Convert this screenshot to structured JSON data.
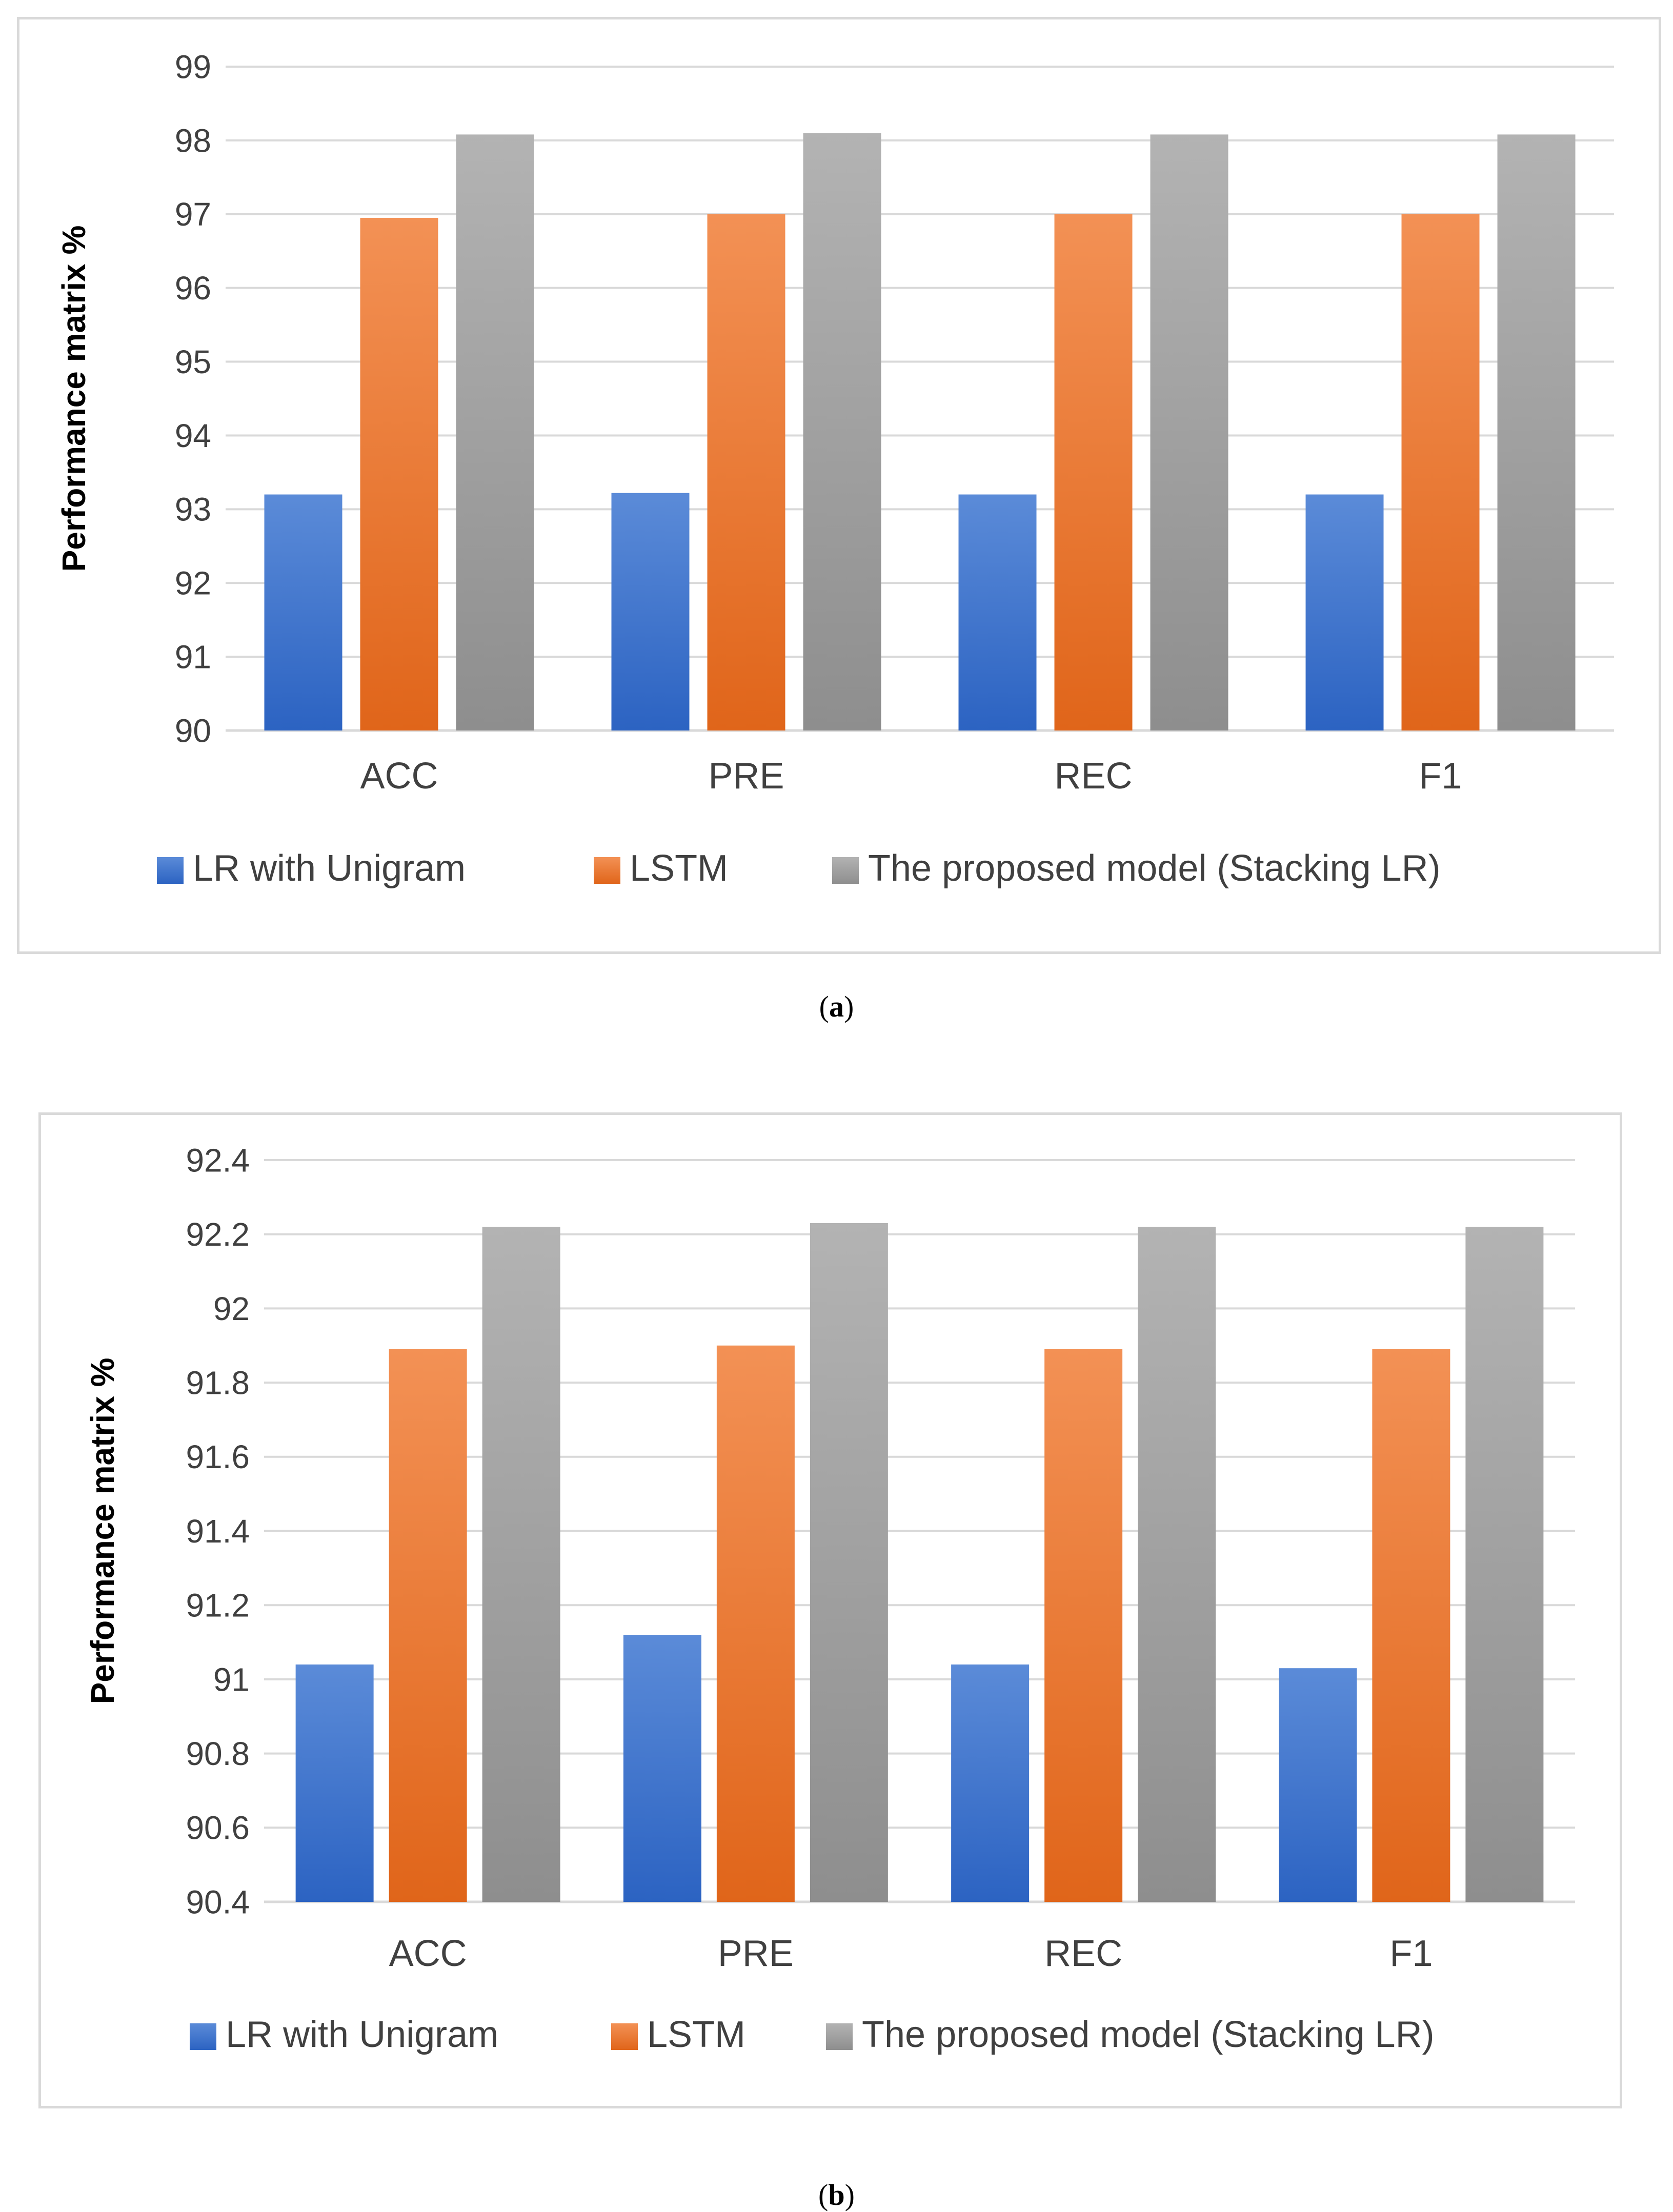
{
  "colors": {
    "series": [
      [
        "#5b8bd8",
        "#2c63c2"
      ],
      [
        "#f39155",
        "#e0651a"
      ],
      [
        "#b3b3b3",
        "#8e8e8e"
      ]
    ],
    "grid": "#d9d9d9",
    "axis": "#d9d9d9",
    "text": "#404040"
  },
  "captions": {
    "a_open": "(",
    "a_letter": "a",
    "a_close": ")",
    "b_open": "(",
    "b_letter": "b",
    "b_close": ")"
  },
  "chart_data": [
    {
      "id": "a",
      "type": "bar",
      "title": "",
      "xlabel": "",
      "ylabel": "Performance matrix %",
      "categories": [
        "ACC",
        "PRE",
        "REC",
        "F1"
      ],
      "ylim": [
        90,
        99
      ],
      "yticks": [
        90,
        91,
        92,
        93,
        94,
        95,
        96,
        97,
        98,
        99
      ],
      "ytick_labels": [
        "90",
        "91",
        "92",
        "93",
        "94",
        "95",
        "96",
        "97",
        "98",
        "99"
      ],
      "grid": true,
      "legend": "bottom",
      "series": [
        {
          "name": "LR with Unigram",
          "values": [
            93.2,
            93.22,
            93.2,
            93.2
          ]
        },
        {
          "name": "LSTM",
          "values": [
            96.95,
            97.0,
            97.0,
            97.0
          ]
        },
        {
          "name": "The proposed model (Stacking LR)",
          "values": [
            98.08,
            98.1,
            98.08,
            98.08
          ]
        }
      ]
    },
    {
      "id": "b",
      "type": "bar",
      "title": "",
      "xlabel": "",
      "ylabel": "Performance matrix %",
      "categories": [
        "ACC",
        "PRE",
        "REC",
        "F1"
      ],
      "ylim": [
        90.4,
        92.4
      ],
      "yticks": [
        90.4,
        90.6,
        90.8,
        91,
        91.2,
        91.4,
        91.6,
        91.8,
        92,
        92.2,
        92.4
      ],
      "ytick_labels": [
        "90.4",
        "90.6",
        "90.8",
        "91",
        "91.2",
        "91.4",
        "91.6",
        "91.8",
        "92",
        "92.2",
        "92.4"
      ],
      "grid": true,
      "legend": "bottom",
      "series": [
        {
          "name": "LR with Unigram",
          "values": [
            91.04,
            91.12,
            91.04,
            91.03
          ]
        },
        {
          "name": "LSTM",
          "values": [
            91.89,
            91.9,
            91.89,
            91.89
          ]
        },
        {
          "name": "The proposed model (Stacking LR)",
          "values": [
            92.22,
            92.23,
            92.22,
            92.22
          ]
        }
      ]
    }
  ]
}
